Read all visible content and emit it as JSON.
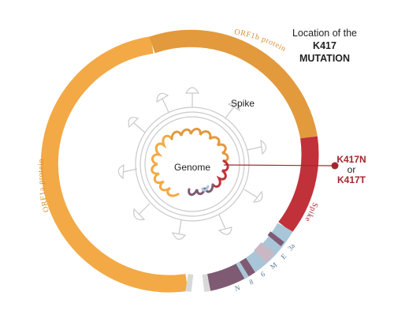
{
  "header": {
    "line1": "Location of the",
    "line2": "K417",
    "line3": "MUTATION"
  },
  "labels": {
    "spike_center": "Spike",
    "genome": "Genome",
    "orf1a": "ORF1a protein",
    "orf1b": "ORF1b protein",
    "spike_arc": "Spike",
    "gene_3a": "3a",
    "gene_E": "E",
    "gene_M": "M",
    "gene_6": "6",
    "gene_8": "8",
    "gene_N": "N"
  },
  "callout": {
    "mutation_a": "K417N",
    "or_text": "or",
    "mutation_b": "K417T"
  },
  "colors": {
    "orf1a": "#F3A945",
    "orf1b": "#E29A3D",
    "spike": "#C1313A",
    "accessory_blue": "#A9C6D8",
    "accessory_purple": "#7E5A73",
    "terminal_grey": "#D8D8D8",
    "label_orange": "#D98C2E",
    "label_red": "#A3262E",
    "virus_outline": "#C9C9C9"
  }
}
